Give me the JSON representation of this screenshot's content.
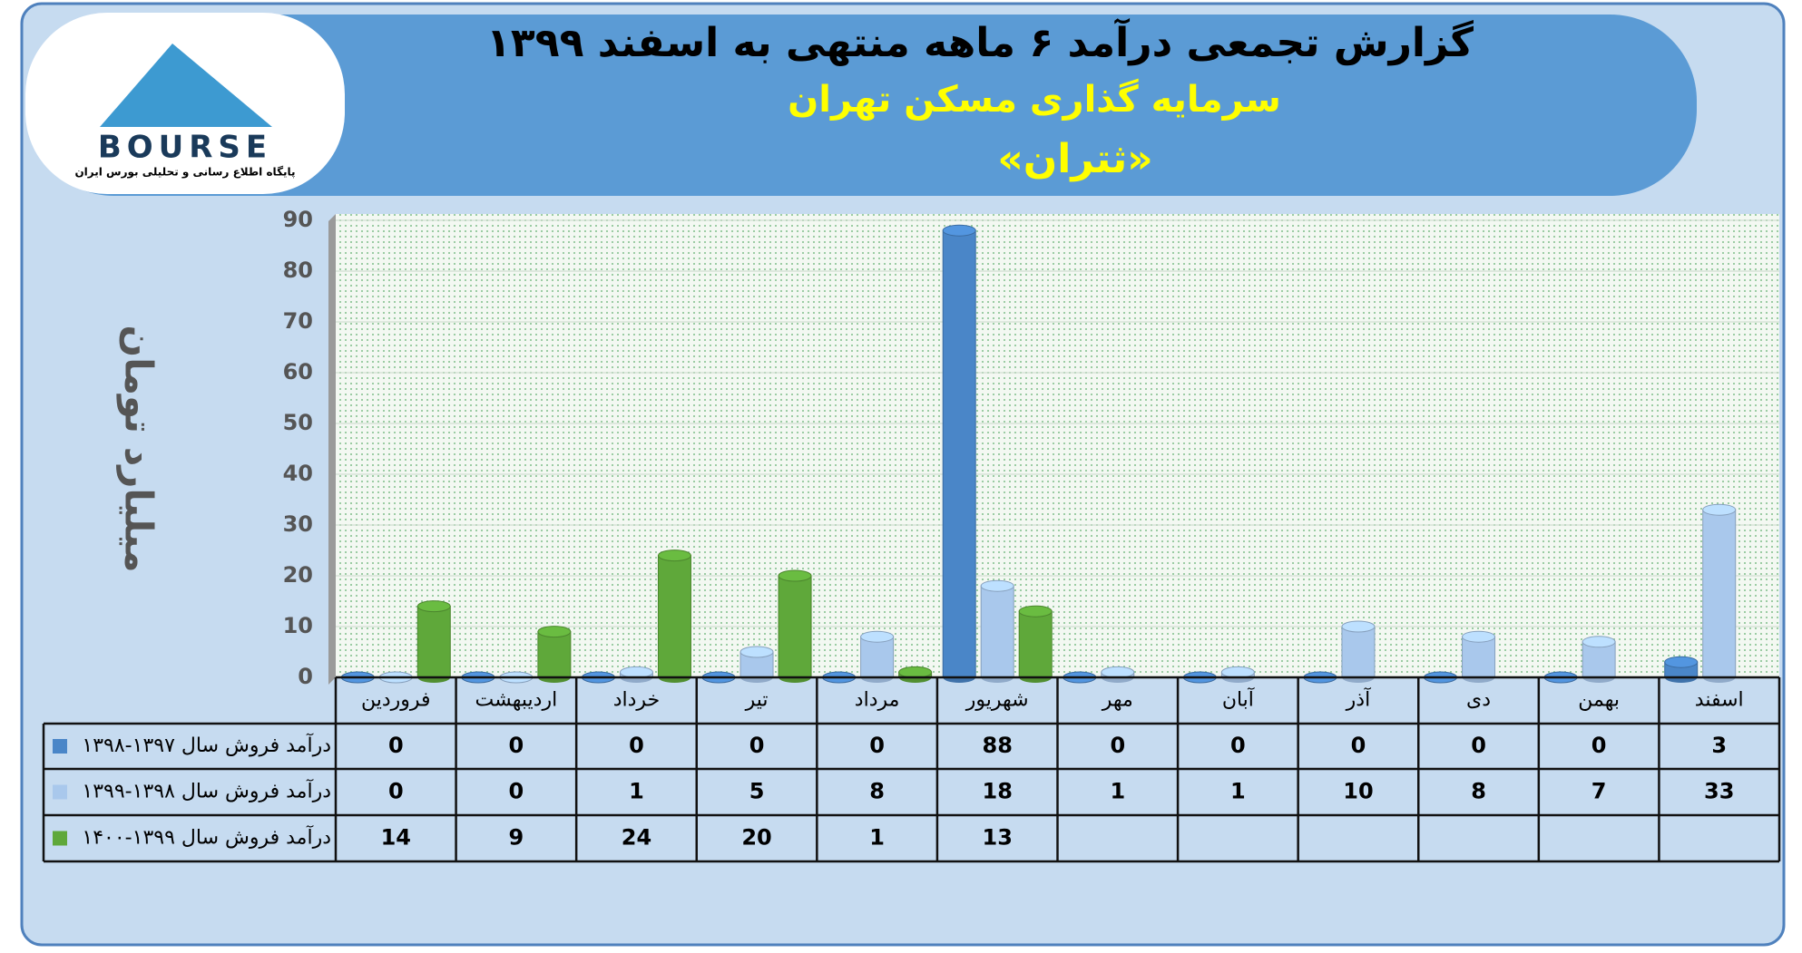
{
  "logo": {
    "name": "BOURSE",
    "tagline": "پایگاه اطلاع رسانی و تحلیلی بورس ایران"
  },
  "chart_data": {
    "type": "bar",
    "title": "گزارش تجمعی درآمد ۶ ماهه منتهی به اسفند ۱۳۹۹",
    "subtitle": "سرمایه گذاری مسکن تهران",
    "symbol": "«ثتران»",
    "y_label": "میلیارد تومان",
    "categories": [
      "فروردین",
      "اردیبهشت",
      "خرداد",
      "تیر",
      "مرداد",
      "شهریور",
      "مهر",
      "آبان",
      "آذر",
      "دی",
      "بهمن",
      "اسفند"
    ],
    "series": [
      {
        "name": "درآمد فروش سال ۱۳۹۷-۱۳۹۸",
        "color": "#4a86c8",
        "values": [
          0,
          0,
          0,
          0,
          0,
          88,
          0,
          0,
          0,
          0,
          0,
          3
        ]
      },
      {
        "name": "درآمد فروش سال ۱۳۹۸-۱۳۹۹",
        "color": "#a9c8ec",
        "values": [
          0,
          0,
          1,
          5,
          8,
          18,
          1,
          1,
          10,
          8,
          7,
          33
        ]
      },
      {
        "name": "درآمد فروش سال ۱۳۹۹-۱۴۰۰",
        "color": "#5fa83a",
        "values": [
          14,
          9,
          24,
          20,
          1,
          13,
          null,
          null,
          null,
          null,
          null,
          null
        ]
      }
    ],
    "ylim": [
      0,
      90
    ],
    "yticks": [
      0,
      10,
      20,
      30,
      40,
      50,
      60,
      70,
      80,
      90
    ],
    "grid": true
  }
}
